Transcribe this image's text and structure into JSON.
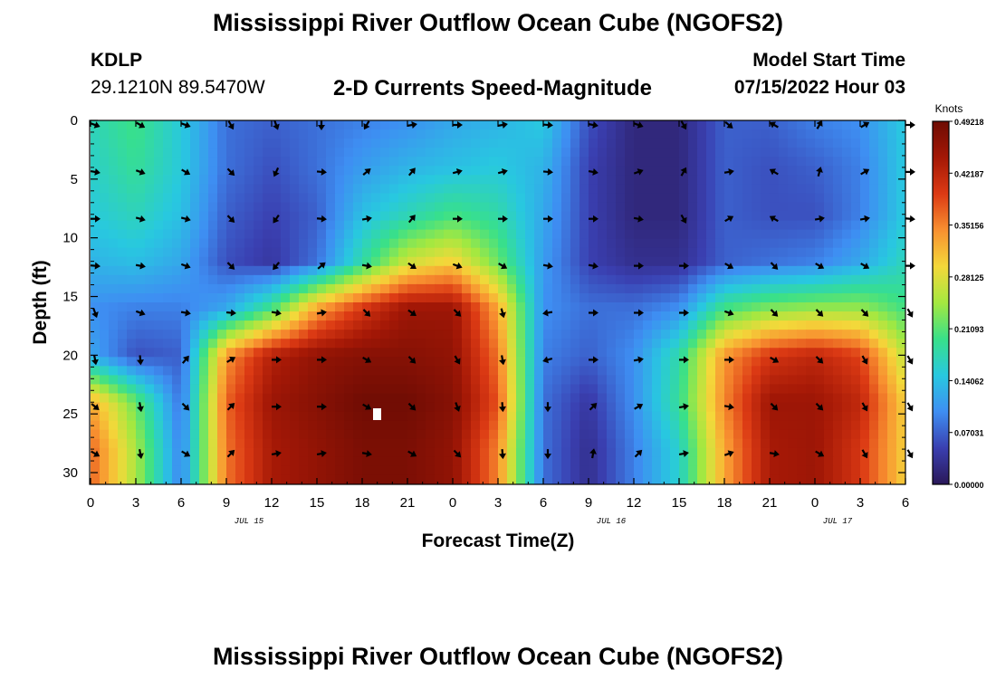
{
  "header": {
    "title": "Mississippi River Outflow Ocean Cube (NGOFS2)",
    "station_id": "KDLP",
    "coordinates": "29.1210N  89.5470W",
    "model_start_label": "Model Start Time",
    "model_start_value": "07/15/2022 Hour 03"
  },
  "footer": {
    "title": "Mississippi River Outflow Ocean Cube (NGOFS2)"
  },
  "chart_data": {
    "type": "heatmap",
    "title": "2-D Currents Speed-Magnitude",
    "xlabel": "Forecast Time(Z)",
    "ylabel": "Depth (ft)",
    "x_tick_labels": [
      "0",
      "3",
      "6",
      "9",
      "12",
      "15",
      "18",
      "21",
      "0",
      "3",
      "6",
      "9",
      "12",
      "15",
      "18",
      "21",
      "0",
      "3",
      "6"
    ],
    "date_labels": [
      "JUL 15",
      "JUL 16",
      "JUL 17"
    ],
    "date_label_hours": [
      10.5,
      34.5,
      49.5
    ],
    "x_range_hours": [
      0,
      54
    ],
    "y_ticks": [
      0,
      5,
      10,
      15,
      20,
      25,
      30
    ],
    "ylim": [
      0,
      31
    ],
    "y_inverted": true,
    "colorbar": {
      "label": "Knots",
      "tick_labels": [
        "0.49218",
        "0.42187",
        "0.35156",
        "0.28125",
        "0.21093",
        "0.14062",
        "0.07031",
        "0.00000"
      ],
      "min": 0,
      "max": 0.49218,
      "colors": [
        "#2a1858",
        "#3a3fb0",
        "#3e8ef2",
        "#28c8e0",
        "#38e08a",
        "#a4e840",
        "#f4d83a",
        "#f89030",
        "#dc3a14",
        "#a41806",
        "#6e0c04"
      ]
    },
    "depths_ft": [
      0,
      4,
      8,
      12,
      16,
      20,
      24,
      28
    ],
    "times_hours": [
      0,
      3,
      6,
      9,
      12,
      15,
      18,
      21,
      24,
      27,
      30,
      33,
      36,
      39,
      42,
      45,
      48,
      51,
      54
    ],
    "speed_knots": [
      [
        0.17,
        0.2,
        0.15,
        0.08,
        0.07,
        0.08,
        0.09,
        0.1,
        0.12,
        0.13,
        0.15,
        0.06,
        0.02,
        0.02,
        0.07,
        0.07,
        0.09,
        0.1,
        0.15
      ],
      [
        0.16,
        0.19,
        0.15,
        0.08,
        0.06,
        0.08,
        0.11,
        0.13,
        0.14,
        0.15,
        0.13,
        0.05,
        0.02,
        0.02,
        0.07,
        0.06,
        0.07,
        0.09,
        0.15
      ],
      [
        0.15,
        0.17,
        0.14,
        0.07,
        0.05,
        0.07,
        0.14,
        0.17,
        0.2,
        0.18,
        0.12,
        0.05,
        0.02,
        0.02,
        0.07,
        0.06,
        0.06,
        0.09,
        0.15
      ],
      [
        0.13,
        0.14,
        0.12,
        0.06,
        0.04,
        0.08,
        0.18,
        0.27,
        0.3,
        0.22,
        0.11,
        0.05,
        0.03,
        0.03,
        0.07,
        0.08,
        0.09,
        0.12,
        0.17
      ],
      [
        0.1,
        0.09,
        0.09,
        0.12,
        0.2,
        0.33,
        0.4,
        0.45,
        0.45,
        0.33,
        0.1,
        0.08,
        0.08,
        0.1,
        0.2,
        0.23,
        0.24,
        0.24,
        0.2
      ],
      [
        0.12,
        0.06,
        0.07,
        0.34,
        0.43,
        0.46,
        0.47,
        0.47,
        0.46,
        0.36,
        0.09,
        0.07,
        0.1,
        0.18,
        0.34,
        0.4,
        0.42,
        0.39,
        0.26
      ],
      [
        0.33,
        0.22,
        0.08,
        0.37,
        0.45,
        0.47,
        0.49,
        0.49,
        0.47,
        0.38,
        0.08,
        0.04,
        0.1,
        0.19,
        0.35,
        0.45,
        0.45,
        0.42,
        0.3
      ],
      [
        0.37,
        0.25,
        0.09,
        0.36,
        0.44,
        0.46,
        0.48,
        0.48,
        0.46,
        0.35,
        0.08,
        0.03,
        0.09,
        0.16,
        0.33,
        0.44,
        0.45,
        0.4,
        0.3
      ]
    ],
    "direction_deg": [
      [
        110,
        120,
        110,
        150,
        160,
        180,
        210,
        80,
        90,
        80,
        95,
        100,
        110,
        150,
        130,
        300,
        30,
        60,
        90
      ],
      [
        100,
        110,
        120,
        135,
        205,
        95,
        50,
        40,
        75,
        75,
        95,
        100,
        70,
        30,
        80,
        300,
        15,
        60,
        90
      ],
      [
        90,
        105,
        105,
        135,
        215,
        95,
        80,
        40,
        90,
        90,
        90,
        90,
        100,
        150,
        60,
        300,
        80,
        80,
        95
      ],
      [
        95,
        100,
        110,
        135,
        220,
        50,
        100,
        125,
        110,
        120,
        100,
        100,
        90,
        90,
        120,
        135,
        120,
        120,
        90
      ],
      [
        160,
        110,
        100,
        95,
        100,
        80,
        135,
        125,
        135,
        165,
        260,
        90,
        90,
        90,
        110,
        135,
        135,
        135,
        150
      ],
      [
        170,
        175,
        40,
        60,
        90,
        90,
        120,
        135,
        150,
        170,
        255,
        90,
        80,
        90,
        90,
        120,
        135,
        150,
        150
      ],
      [
        130,
        170,
        135,
        45,
        90,
        90,
        120,
        135,
        160,
        175,
        180,
        45,
        60,
        80,
        100,
        135,
        135,
        150,
        150
      ],
      [
        120,
        170,
        120,
        45,
        80,
        80,
        100,
        120,
        135,
        175,
        180,
        10,
        45,
        80,
        70,
        100,
        120,
        150,
        150
      ]
    ]
  }
}
